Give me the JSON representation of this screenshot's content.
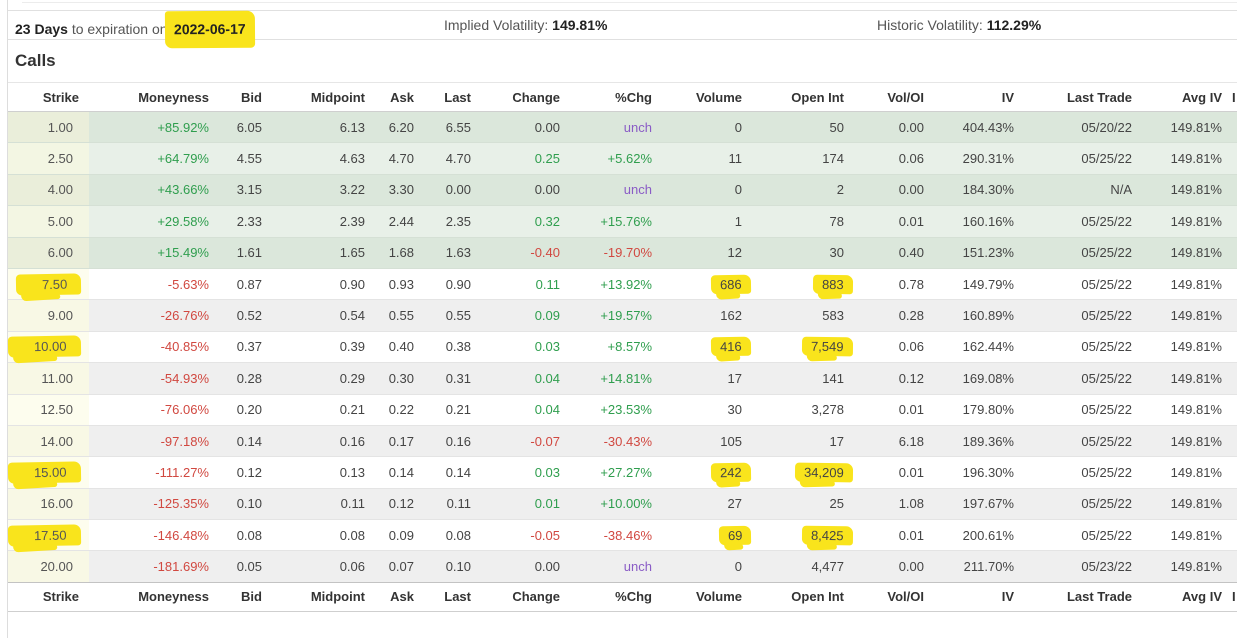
{
  "top_bar": {
    "days": "23 Days",
    "expiration_text": "to expiration on",
    "expiration_date": "2022-06-17",
    "implied_vol_label": "Implied Volatility:",
    "implied_vol_value": "149.81%",
    "historic_vol_label": "Historic Volatility:",
    "historic_vol_value": "112.29%"
  },
  "section_title": "Calls",
  "table": {
    "columns": [
      "Strike",
      "Moneyness",
      "Bid",
      "Midpoint",
      "Ask",
      "Last",
      "Change",
      "%Chg",
      "Volume",
      "Open Int",
      "Vol/OI",
      "IV",
      "Last Trade",
      "Avg IV"
    ],
    "partial_column": "I",
    "highlight_color": "#f9e41c",
    "itm_row_color": "#dbe7db",
    "rows": [
      {
        "cells": [
          "1.00",
          "+85.92%",
          "6.05",
          "6.13",
          "6.20",
          "6.55",
          "0.00",
          "unch",
          "0",
          "50",
          "0.00",
          "404.43%",
          "05/20/22",
          "149.81%"
        ],
        "zone": "itm-a",
        "colors": {
          "moneyness": "pos",
          "change": "neu",
          "pchg": "unch"
        },
        "highlights": []
      },
      {
        "cells": [
          "2.50",
          "+64.79%",
          "4.55",
          "4.63",
          "4.70",
          "4.70",
          "0.25",
          "+5.62%",
          "11",
          "174",
          "0.06",
          "290.31%",
          "05/25/22",
          "149.81%"
        ],
        "zone": "itm-b",
        "colors": {
          "moneyness": "pos",
          "change": "pos",
          "pchg": "pos"
        },
        "highlights": []
      },
      {
        "cells": [
          "4.00",
          "+43.66%",
          "3.15",
          "3.22",
          "3.30",
          "0.00",
          "0.00",
          "unch",
          "0",
          "2",
          "0.00",
          "184.30%",
          "N/A",
          "149.81%"
        ],
        "zone": "itm-a",
        "colors": {
          "moneyness": "pos",
          "change": "neu",
          "pchg": "unch"
        },
        "highlights": []
      },
      {
        "cells": [
          "5.00",
          "+29.58%",
          "2.33",
          "2.39",
          "2.44",
          "2.35",
          "0.32",
          "+15.76%",
          "1",
          "78",
          "0.01",
          "160.16%",
          "05/25/22",
          "149.81%"
        ],
        "zone": "itm-b",
        "colors": {
          "moneyness": "pos",
          "change": "pos",
          "pchg": "pos"
        },
        "highlights": []
      },
      {
        "cells": [
          "6.00",
          "+15.49%",
          "1.61",
          "1.65",
          "1.68",
          "1.63",
          "-0.40",
          "-19.70%",
          "12",
          "30",
          "0.40",
          "151.23%",
          "05/25/22",
          "149.81%"
        ],
        "zone": "itm-a",
        "colors": {
          "moneyness": "pos",
          "change": "neg",
          "pchg": "neg"
        },
        "highlights": []
      },
      {
        "cells": [
          "7.50",
          "-5.63%",
          "0.87",
          "0.90",
          "0.93",
          "0.90",
          "0.11",
          "+13.92%",
          "686",
          "883",
          "0.78",
          "149.79%",
          "05/25/22",
          "149.81%"
        ],
        "zone": "otm-w",
        "colors": {
          "moneyness": "neg",
          "change": "pos",
          "pchg": "pos"
        },
        "highlights": [
          0,
          8,
          9
        ]
      },
      {
        "cells": [
          "9.00",
          "-26.76%",
          "0.52",
          "0.54",
          "0.55",
          "0.55",
          "0.09",
          "+19.57%",
          "162",
          "583",
          "0.28",
          "160.89%",
          "05/25/22",
          "149.81%"
        ],
        "zone": "otm-g",
        "colors": {
          "moneyness": "neg",
          "change": "pos",
          "pchg": "pos"
        },
        "highlights": []
      },
      {
        "cells": [
          "10.00",
          "-40.85%",
          "0.37",
          "0.39",
          "0.40",
          "0.38",
          "0.03",
          "+8.57%",
          "416",
          "7,549",
          "0.06",
          "162.44%",
          "05/25/22",
          "149.81%"
        ],
        "zone": "otm-w",
        "colors": {
          "moneyness": "neg",
          "change": "pos",
          "pchg": "pos"
        },
        "highlights": [
          0,
          8,
          9
        ]
      },
      {
        "cells": [
          "11.00",
          "-54.93%",
          "0.28",
          "0.29",
          "0.30",
          "0.31",
          "0.04",
          "+14.81%",
          "17",
          "141",
          "0.12",
          "169.08%",
          "05/25/22",
          "149.81%"
        ],
        "zone": "otm-g",
        "colors": {
          "moneyness": "neg",
          "change": "pos",
          "pchg": "pos"
        },
        "highlights": []
      },
      {
        "cells": [
          "12.50",
          "-76.06%",
          "0.20",
          "0.21",
          "0.22",
          "0.21",
          "0.04",
          "+23.53%",
          "30",
          "3,278",
          "0.01",
          "179.80%",
          "05/25/22",
          "149.81%"
        ],
        "zone": "otm-w",
        "colors": {
          "moneyness": "neg",
          "change": "pos",
          "pchg": "pos"
        },
        "highlights": []
      },
      {
        "cells": [
          "14.00",
          "-97.18%",
          "0.14",
          "0.16",
          "0.17",
          "0.16",
          "-0.07",
          "-30.43%",
          "105",
          "17",
          "6.18",
          "189.36%",
          "05/25/22",
          "149.81%"
        ],
        "zone": "otm-g",
        "colors": {
          "moneyness": "neg",
          "change": "neg",
          "pchg": "neg"
        },
        "highlights": []
      },
      {
        "cells": [
          "15.00",
          "-111.27%",
          "0.12",
          "0.13",
          "0.14",
          "0.14",
          "0.03",
          "+27.27%",
          "242",
          "34,209",
          "0.01",
          "196.30%",
          "05/25/22",
          "149.81%"
        ],
        "zone": "otm-w",
        "colors": {
          "moneyness": "neg",
          "change": "pos",
          "pchg": "pos"
        },
        "highlights": [
          0,
          8,
          9
        ]
      },
      {
        "cells": [
          "16.00",
          "-125.35%",
          "0.10",
          "0.11",
          "0.12",
          "0.11",
          "0.01",
          "+10.00%",
          "27",
          "25",
          "1.08",
          "197.67%",
          "05/25/22",
          "149.81%"
        ],
        "zone": "otm-g",
        "colors": {
          "moneyness": "neg",
          "change": "pos",
          "pchg": "pos"
        },
        "highlights": []
      },
      {
        "cells": [
          "17.50",
          "-146.48%",
          "0.08",
          "0.08",
          "0.09",
          "0.08",
          "-0.05",
          "-38.46%",
          "69",
          "8,425",
          "0.01",
          "200.61%",
          "05/25/22",
          "149.81%"
        ],
        "zone": "otm-w",
        "colors": {
          "moneyness": "neg",
          "change": "neg",
          "pchg": "neg"
        },
        "highlights": [
          0,
          8,
          9
        ]
      },
      {
        "cells": [
          "20.00",
          "-181.69%",
          "0.05",
          "0.06",
          "0.07",
          "0.10",
          "0.00",
          "unch",
          "0",
          "4,477",
          "0.00",
          "211.70%",
          "05/23/22",
          "149.81%"
        ],
        "zone": "otm-g",
        "colors": {
          "moneyness": "neg",
          "change": "neu",
          "pchg": "unch"
        },
        "highlights": []
      }
    ]
  }
}
